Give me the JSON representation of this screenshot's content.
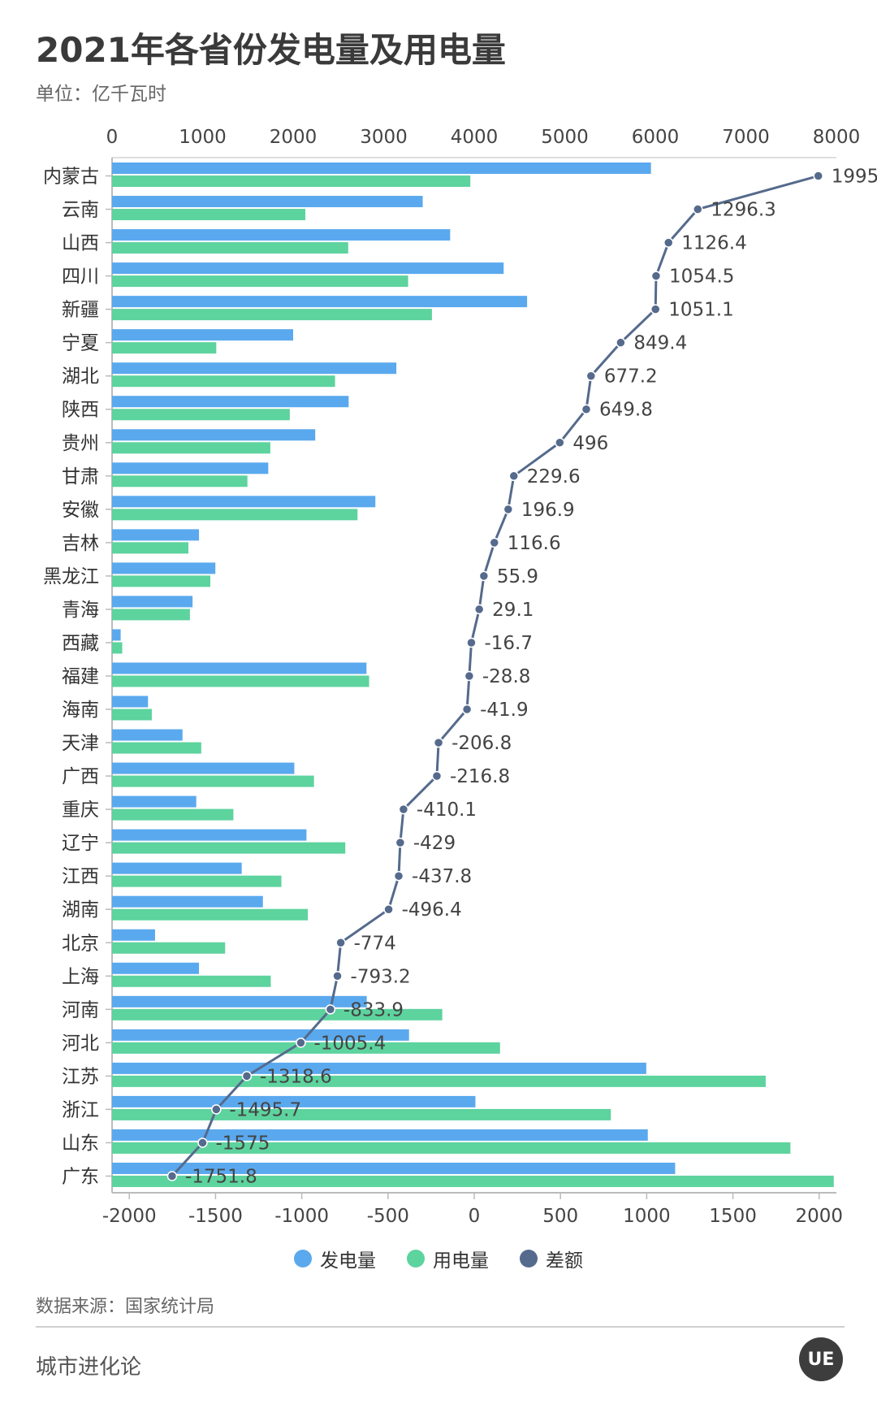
{
  "header": {
    "title": "2021年各省份发电量及用电量",
    "unit": "单位：亿千瓦时"
  },
  "legend": [
    {
      "label": "发电量",
      "color": "#5aa9ee"
    },
    {
      "label": "用电量",
      "color": "#5dd39e"
    },
    {
      "label": "差额",
      "color": "#556a8c"
    }
  ],
  "footer": {
    "source": "数据来源：国家统计局",
    "brand": "城市进化论",
    "logo": "UE"
  },
  "chart_data": {
    "type": "bar",
    "orientation": "horizontal",
    "categories": [
      "内蒙古",
      "云南",
      "山西",
      "四川",
      "新疆",
      "宁夏",
      "湖北",
      "陕西",
      "贵州",
      "甘肃",
      "安徽",
      "吉林",
      "黑龙江",
      "青海",
      "西藏",
      "福建",
      "海南",
      "天津",
      "广西",
      "重庆",
      "辽宁",
      "江西",
      "湖南",
      "北京",
      "上海",
      "河南",
      "河北",
      "江苏",
      "浙江",
      "山东",
      "广东"
    ],
    "series": [
      {
        "name": "发电量",
        "axis": "top",
        "values": [
          5952,
          3431,
          3734,
          4325,
          4584,
          2000,
          3140,
          2613,
          2244,
          1725,
          2908,
          960,
          1141,
          889,
          95,
          2810,
          397,
          778,
          2013,
          930,
          2147,
          1432,
          1666,
          475,
          960,
          2813,
          3280,
          5900,
          4013,
          5917,
          6219
        ]
      },
      {
        "name": "用电量",
        "axis": "top",
        "values": [
          3957,
          2135,
          2608,
          3270,
          3533,
          1151,
          2463,
          1963,
          1748,
          1495,
          2711,
          843,
          1085,
          860,
          112,
          2839,
          439,
          985,
          2230,
          1340,
          2576,
          1870,
          2162,
          1249,
          1753,
          3647,
          4285,
          7219,
          5509,
          7492,
          7971
        ]
      },
      {
        "name": "差额",
        "axis": "bottom",
        "type": "line",
        "values": [
          1995,
          1296.3,
          1126.4,
          1054.5,
          1051.1,
          849.4,
          677.2,
          649.8,
          496,
          229.6,
          196.9,
          116.6,
          55.9,
          29.1,
          -16.7,
          -28.8,
          -41.9,
          -206.8,
          -216.8,
          -410.1,
          -429,
          -437.8,
          -496.4,
          -774,
          -793.2,
          -833.9,
          -1005.4,
          -1318.6,
          -1495.7,
          -1575,
          -1751.8
        ]
      }
    ],
    "top_axis": {
      "range": [
        0,
        8000
      ],
      "ticks": [
        0,
        1000,
        2000,
        3000,
        4000,
        5000,
        6000,
        7000,
        8000
      ]
    },
    "bottom_axis": {
      "range": [
        -2100,
        2100
      ],
      "ticks": [
        -2000,
        -1500,
        -1000,
        -500,
        0,
        500,
        1000,
        1500,
        2000
      ]
    },
    "legend_position": "bottom"
  }
}
